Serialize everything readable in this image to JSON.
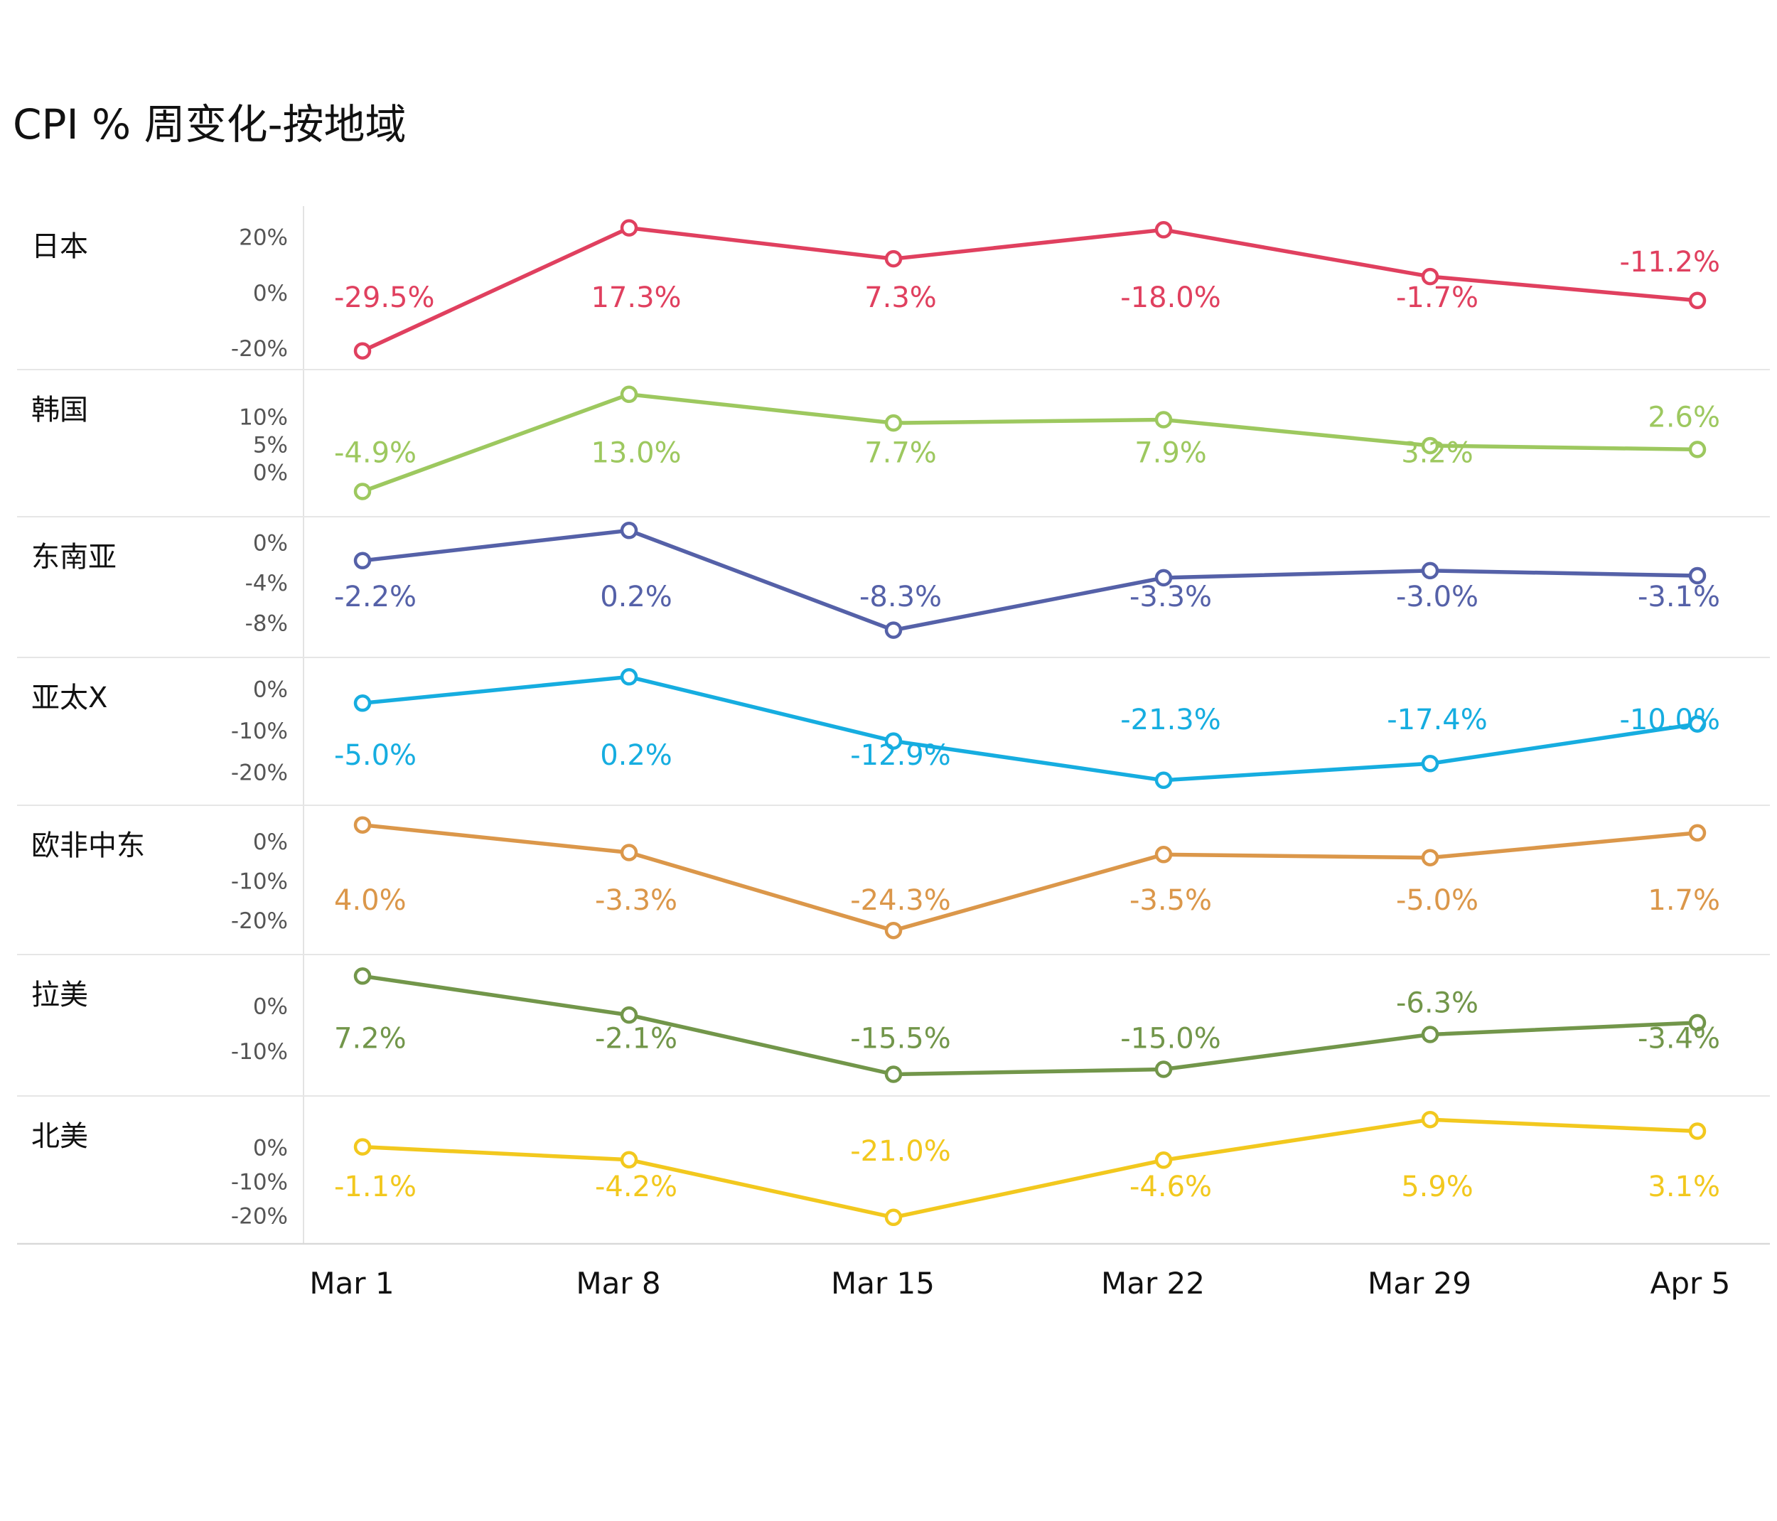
{
  "chart_data": {
    "type": "line",
    "title": "CPI % 周变化-按地域",
    "x": [
      "Mar 1",
      "Mar 8",
      "Mar 15",
      "Mar 22",
      "Mar 29",
      "Apr 5"
    ],
    "panels": [
      {
        "name": "日本",
        "color": "#e0405f",
        "values": [
          -29.5,
          17.3,
          7.3,
          -18.0,
          -1.7,
          -11.2
        ],
        "labels": [
          "-29.5%",
          "17.3%",
          "7.3%",
          "-18.0%",
          "-1.7%",
          "-11.2%"
        ],
        "line_levels": [
          -20.9,
          23.3,
          12.2,
          22.6,
          5.8,
          -2.8
        ],
        "yticks": [
          {
            "v": 20,
            "label": "20%"
          },
          {
            "v": 0,
            "label": "0%"
          },
          {
            "v": -20,
            "label": "-20%"
          }
        ],
        "ylim": [
          -22.5,
          26
        ]
      },
      {
        "name": "韩国",
        "color": "#9dc85f",
        "values": [
          -4.9,
          13.0,
          7.7,
          7.9,
          3.2,
          2.6
        ],
        "labels": [
          "-4.9%",
          "13.0%",
          "7.7%",
          "7.9%",
          "3.2%",
          "2.6%"
        ],
        "line_levels": [
          -3.5,
          14.1,
          8.9,
          9.5,
          4.8,
          4.1
        ],
        "yticks": [
          {
            "v": 10,
            "label": "10%"
          },
          {
            "v": 5,
            "label": "5%"
          },
          {
            "v": 0,
            "label": "0%"
          }
        ],
        "ylim": [
          -5.5,
          16
        ]
      },
      {
        "name": "东南亚",
        "color": "#5561a8",
        "values": [
          -2.2,
          0.2,
          -8.3,
          -3.3,
          -3.0,
          -3.1
        ],
        "labels": [
          "-2.2%",
          "0.2%",
          "-8.3%",
          "-3.3%",
          "-3.0%",
          "-3.1%"
        ],
        "line_levels": [
          -1.8,
          1.2,
          -8.7,
          -3.5,
          -2.8,
          -3.3
        ],
        "yticks": [
          {
            "v": 0,
            "label": "0%"
          },
          {
            "v": -4,
            "label": "-4%"
          },
          {
            "v": -8,
            "label": "-8%"
          }
        ],
        "ylim": [
          -10,
          1.5
        ]
      },
      {
        "name": "亚太X",
        "color": "#16ade0",
        "values": [
          -5.0,
          0.2,
          -12.9,
          -21.3,
          -17.4,
          -10.0
        ],
        "labels": [
          "-5.0%",
          "0.2%",
          "-12.9%",
          "-21.3%",
          "-17.4%",
          "-10.0%"
        ],
        "line_levels": [
          -3.4,
          2.9,
          -12.5,
          -21.9,
          -17.9,
          -8.4
        ],
        "yticks": [
          {
            "v": 0,
            "label": "0%"
          },
          {
            "v": -10,
            "label": "-10%"
          },
          {
            "v": -20,
            "label": "-20%"
          }
        ],
        "ylim": [
          -24.5,
          5
        ]
      },
      {
        "name": "欧非中东",
        "color": "#db974a",
        "values": [
          4.0,
          -3.3,
          -24.3,
          -3.5,
          -5.0,
          1.7
        ],
        "labels": [
          "4.0%",
          "-3.3%",
          "-24.3%",
          "-3.5%",
          "-5.0%",
          "1.7%"
        ],
        "line_levels": [
          4.2,
          -2.8,
          -22.6,
          -3.3,
          -4.1,
          2.2
        ],
        "yticks": [
          {
            "v": 0,
            "label": "0%"
          },
          {
            "v": -10,
            "label": "-10%"
          },
          {
            "v": -20,
            "label": "-20%"
          }
        ],
        "ylim": [
          -26,
          6.5
        ]
      },
      {
        "name": "拉美",
        "color": "#72964a",
        "values": [
          7.2,
          -2.1,
          -15.5,
          -15.0,
          -6.3,
          -3.4
        ],
        "labels": [
          "7.2%",
          "-2.1%",
          "-15.5%",
          "-15.0%",
          "-6.3%",
          "-3.4%"
        ],
        "line_levels": [
          6.6,
          -2.0,
          -15.1,
          -14.0,
          -6.3,
          -3.7
        ],
        "yticks": [
          {
            "v": 0,
            "label": "0%"
          },
          {
            "v": -10,
            "label": "-10%"
          }
        ],
        "ylim": [
          -18,
          9
        ]
      },
      {
        "name": "北美",
        "color": "#f2c81e",
        "values": [
          -1.1,
          -4.2,
          -21.0,
          -4.6,
          5.9,
          3.1
        ],
        "labels": [
          "-1.1%",
          "-4.2%",
          "-21.0%",
          "-4.6%",
          "5.9%",
          "3.1%"
        ],
        "line_levels": [
          0.2,
          -3.6,
          -20.5,
          -3.7,
          8.2,
          4.8
        ],
        "yticks": [
          {
            "v": 0,
            "label": "0%"
          },
          {
            "v": -10,
            "label": "-10%"
          },
          {
            "v": -20,
            "label": "-20%"
          }
        ],
        "ylim": [
          -24.5,
          12
        ]
      }
    ]
  }
}
